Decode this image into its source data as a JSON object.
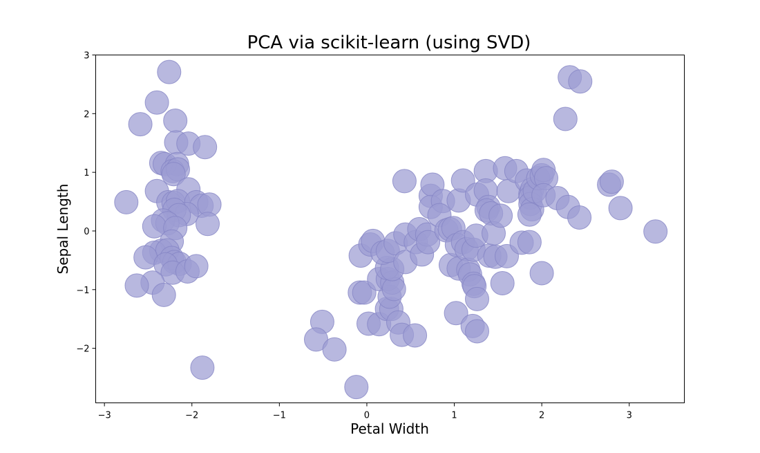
{
  "chart_data": {
    "type": "scatter",
    "title": "PCA via scikit-learn (using SVD)",
    "xlabel": "Petal Width",
    "ylabel": "Sepal Length",
    "xlim": [
      -3.1,
      3.63
    ],
    "ylim": [
      -2.93,
      3.0
    ],
    "xticks": [
      -3,
      -2,
      -1,
      0,
      1,
      2,
      3
    ],
    "yticks": [
      -2,
      -1,
      0,
      1,
      2,
      3
    ],
    "xtick_labels": [
      "−3",
      "−2",
      "−1",
      "0",
      "1",
      "2",
      "3"
    ],
    "ytick_labels": [
      "−2",
      "−1",
      "0",
      "1",
      "2",
      "3"
    ],
    "grid": false,
    "marker_color": "#9c9cd2",
    "marker_edge_color": "#8484c4",
    "series": [
      {
        "points": [
          [
            -2.26,
            2.71
          ],
          [
            -2.4,
            2.19
          ],
          [
            -2.59,
            1.82
          ],
          [
            -2.19,
            1.88
          ],
          [
            -2.18,
            1.51
          ],
          [
            -2.04,
            1.49
          ],
          [
            -1.85,
            1.43
          ],
          [
            -2.35,
            1.16
          ],
          [
            -2.31,
            1.14
          ],
          [
            -2.17,
            1.14
          ],
          [
            -2.22,
            1.02
          ],
          [
            -2.16,
            1.05
          ],
          [
            -2.21,
            0.97
          ],
          [
            -2.75,
            0.49
          ],
          [
            -2.4,
            0.68
          ],
          [
            -2.04,
            0.71
          ],
          [
            -2.27,
            0.49
          ],
          [
            -2.21,
            0.48
          ],
          [
            -2.16,
            0.51
          ],
          [
            -1.95,
            0.49
          ],
          [
            -1.89,
            0.43
          ],
          [
            -1.8,
            0.45
          ],
          [
            -2.06,
            0.29
          ],
          [
            -2.2,
            0.36
          ],
          [
            -2.15,
            0.27
          ],
          [
            -2.33,
            0.18
          ],
          [
            -2.28,
            0.13
          ],
          [
            -2.43,
            0.08
          ],
          [
            -2.19,
            0.05
          ],
          [
            -1.82,
            0.12
          ],
          [
            -2.23,
            -0.18
          ],
          [
            -2.35,
            -0.34
          ],
          [
            -2.43,
            -0.37
          ],
          [
            -2.28,
            -0.33
          ],
          [
            -2.53,
            -0.45
          ],
          [
            -2.23,
            -0.46
          ],
          [
            -2.2,
            -0.53
          ],
          [
            -2.14,
            -0.56
          ],
          [
            -2.3,
            -0.57
          ],
          [
            -2.22,
            -0.71
          ],
          [
            -2.05,
            -0.69
          ],
          [
            -1.95,
            -0.6
          ],
          [
            -2.45,
            -0.88
          ],
          [
            -2.63,
            -0.93
          ],
          [
            -2.32,
            -1.09
          ],
          [
            -1.88,
            -2.33
          ],
          [
            -0.51,
            -1.55
          ],
          [
            -0.58,
            -1.85
          ],
          [
            -0.37,
            -2.02
          ],
          [
            -0.12,
            -2.66
          ],
          [
            -0.07,
            -0.42
          ],
          [
            -0.08,
            -1.05
          ],
          [
            -0.03,
            -1.05
          ],
          [
            0.04,
            -0.23
          ],
          [
            0.07,
            -0.17
          ],
          [
            0.02,
            -1.58
          ],
          [
            0.14,
            -1.59
          ],
          [
            0.23,
            -1.33
          ],
          [
            0.28,
            -1.33
          ],
          [
            0.26,
            -1.12
          ],
          [
            0.14,
            -0.82
          ],
          [
            0.24,
            -0.82
          ],
          [
            0.29,
            -0.88
          ],
          [
            0.31,
            -0.99
          ],
          [
            0.23,
            -0.63
          ],
          [
            0.29,
            -0.65
          ],
          [
            0.18,
            -0.37
          ],
          [
            0.24,
            -0.34
          ],
          [
            0.33,
            -0.21
          ],
          [
            0.44,
            -0.53
          ],
          [
            0.36,
            -1.56
          ],
          [
            0.4,
            -1.77
          ],
          [
            0.55,
            -1.78
          ],
          [
            0.44,
            -0.06
          ],
          [
            0.43,
            0.85
          ],
          [
            0.56,
            -0.19
          ],
          [
            0.6,
            0.03
          ],
          [
            0.63,
            -0.4
          ],
          [
            0.69,
            -0.06
          ],
          [
            0.7,
            -0.19
          ],
          [
            0.73,
            0.6
          ],
          [
            0.75,
            0.79
          ],
          [
            0.73,
            0.41
          ],
          [
            0.87,
            0.51
          ],
          [
            0.83,
            0.27
          ],
          [
            0.91,
            0.01
          ],
          [
            0.95,
            0.03
          ],
          [
            0.99,
            0.05
          ],
          [
            0.96,
            -0.58
          ],
          [
            1.03,
            -0.24
          ],
          [
            1.05,
            -0.64
          ],
          [
            1.1,
            -0.19
          ],
          [
            1.14,
            -0.31
          ],
          [
            1.16,
            -0.66
          ],
          [
            1.18,
            -0.74
          ],
          [
            1.22,
            -0.32
          ],
          [
            1.22,
            -0.9
          ],
          [
            1.23,
            -0.94
          ],
          [
            1.26,
            -1.16
          ],
          [
            1.02,
            -1.4
          ],
          [
            1.21,
            -1.62
          ],
          [
            1.26,
            -1.71
          ],
          [
            1.05,
            0.52
          ],
          [
            1.1,
            0.86
          ],
          [
            1.26,
            0.62
          ],
          [
            1.36,
            1.02
          ],
          [
            1.36,
            0.69
          ],
          [
            1.39,
            0.41
          ],
          [
            1.37,
            0.35
          ],
          [
            1.42,
            0.3
          ],
          [
            1.25,
            -0.08
          ],
          [
            1.4,
            -0.42
          ],
          [
            1.45,
            -0.04
          ],
          [
            1.47,
            -0.44
          ],
          [
            1.53,
            0.26
          ],
          [
            1.55,
            -0.89
          ],
          [
            1.58,
            1.07
          ],
          [
            1.62,
            0.68
          ],
          [
            1.6,
            -0.43
          ],
          [
            1.71,
            1.02
          ],
          [
            1.77,
            -0.2
          ],
          [
            1.86,
            -0.19
          ],
          [
            1.83,
            0.86
          ],
          [
            1.87,
            0.63
          ],
          [
            1.89,
            0.71
          ],
          [
            1.87,
            0.57
          ],
          [
            1.87,
            0.46
          ],
          [
            1.89,
            0.37
          ],
          [
            1.86,
            0.28
          ],
          [
            1.92,
            0.68
          ],
          [
            1.96,
            0.9
          ],
          [
            2.0,
            0.95
          ],
          [
            2.02,
            1.04
          ],
          [
            2.05,
            0.9
          ],
          [
            2.02,
            0.61
          ],
          [
            2.0,
            -0.72
          ],
          [
            2.18,
            0.56
          ],
          [
            2.27,
            1.91
          ],
          [
            2.3,
            0.41
          ],
          [
            2.43,
            0.23
          ],
          [
            2.32,
            2.62
          ],
          [
            2.44,
            2.55
          ],
          [
            2.77,
            0.79
          ],
          [
            2.8,
            0.84
          ],
          [
            2.9,
            0.39
          ],
          [
            3.3,
            -0.01
          ]
        ]
      }
    ]
  }
}
